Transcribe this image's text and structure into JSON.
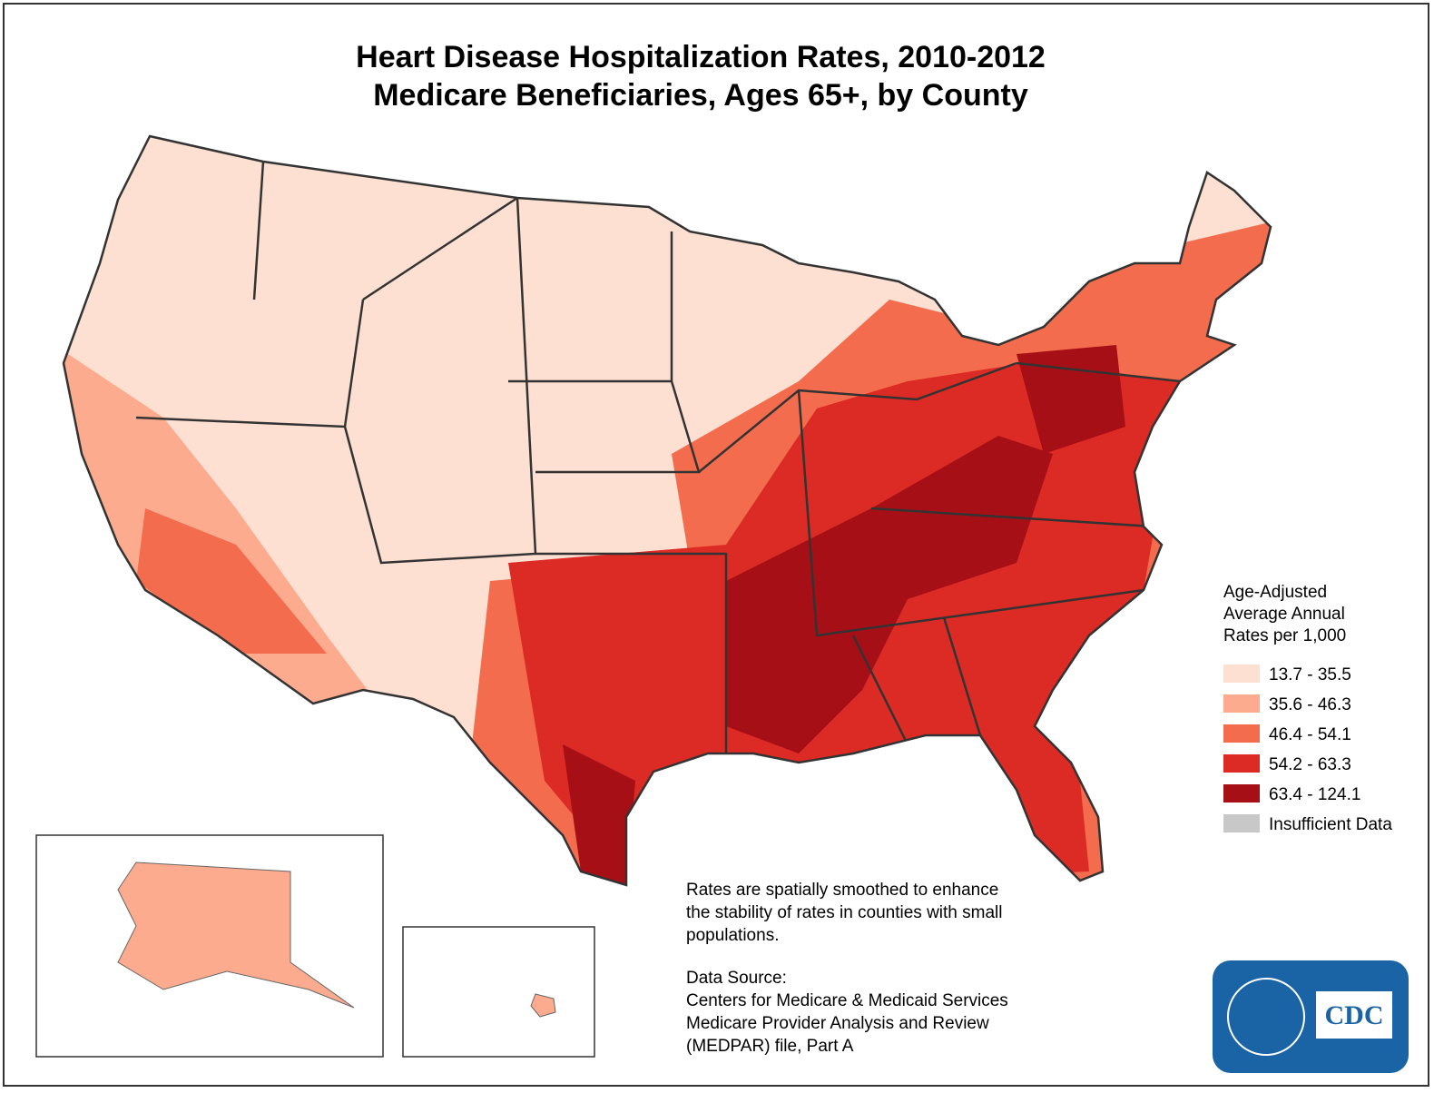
{
  "title": [
    "Heart Disease Hospitalization Rates, 2010-2012",
    "Medicare Beneficiaries, Ages 65+, by County"
  ],
  "legend": {
    "title": [
      "Age-Adjusted",
      "Average Annual",
      "Rates per 1,000"
    ],
    "items": [
      {
        "label": "13.7 - 35.5",
        "color": "#fde0d2"
      },
      {
        "label": "35.6 - 46.3",
        "color": "#fcab8e"
      },
      {
        "label": "46.4 - 54.1",
        "color": "#f46c4e"
      },
      {
        "label": "54.2 - 63.3",
        "color": "#dc2a24"
      },
      {
        "label": "63.4 - 124.1",
        "color": "#a50f15"
      },
      {
        "label": "Insufficient Data",
        "color": "#c8c8c8"
      }
    ]
  },
  "note": [
    "Rates are spatially smoothed to enhance",
    "the stability of rates in counties with small",
    "populations."
  ],
  "source": [
    "Data Source:",
    "Centers for Medicare & Medicaid Services",
    "Medicare Provider Analysis and Review",
    "(MEDPAR) file, Part A"
  ],
  "logo": "CDC"
}
